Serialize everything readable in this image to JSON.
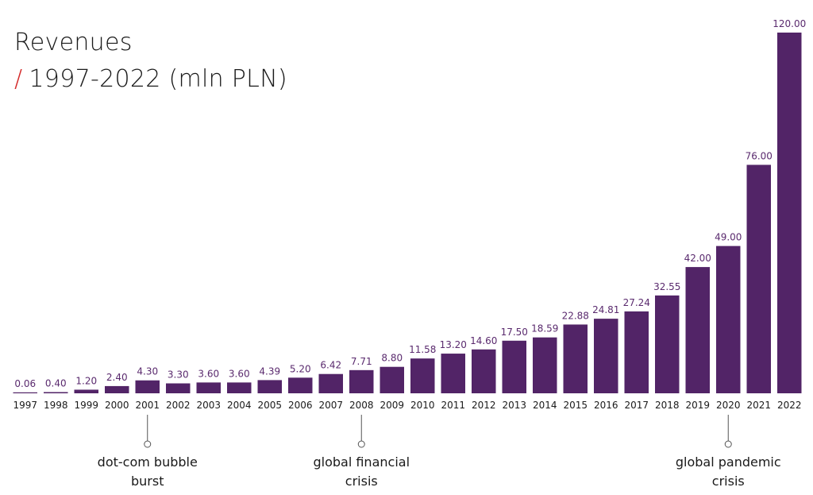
{
  "chart_data": {
    "type": "bar",
    "title": "Revenues",
    "subtitle_slash": "/",
    "subtitle": "1997-2022 (mln PLN)",
    "categories": [
      "1997",
      "1998",
      "1999",
      "2000",
      "2001",
      "2002",
      "2003",
      "2004",
      "2005",
      "2006",
      "2007",
      "2008",
      "2009",
      "2010",
      "2011",
      "2012",
      "2013",
      "2014",
      "2015",
      "2016",
      "2017",
      "2018",
      "2019",
      "2020",
      "2021",
      "2022"
    ],
    "values": [
      0.06,
      0.4,
      1.2,
      2.4,
      4.3,
      3.3,
      3.6,
      3.6,
      4.39,
      5.2,
      6.42,
      7.71,
      8.8,
      11.58,
      13.2,
      14.6,
      17.5,
      18.59,
      22.88,
      24.81,
      27.24,
      32.55,
      42.0,
      49.0,
      76.0,
      120.0
    ],
    "value_labels": [
      "0.06",
      "0.40",
      "1.20",
      "2.40",
      "4.30",
      "3.30",
      "3.60",
      "3.60",
      "4.39",
      "5.20",
      "6.42",
      "7.71",
      "8.80",
      "11.58",
      "13.20",
      "14.60",
      "17.50",
      "18.59",
      "22.88",
      "24.81",
      "27.24",
      "32.55",
      "42.00",
      "49.00",
      "76.00",
      "120.00"
    ],
    "ylim": [
      0,
      120
    ],
    "grid": false,
    "bar_color": "#522467",
    "value_label_color": "#5a2a6e",
    "accent_color": "#d42a2a",
    "annotations": [
      {
        "category": "2001",
        "lines": [
          "dot-com bubble",
          "burst"
        ]
      },
      {
        "category": "2008",
        "lines": [
          "global financial",
          "crisis"
        ]
      },
      {
        "category": "2020",
        "lines": [
          "global pandemic",
          "crisis"
        ]
      }
    ]
  }
}
